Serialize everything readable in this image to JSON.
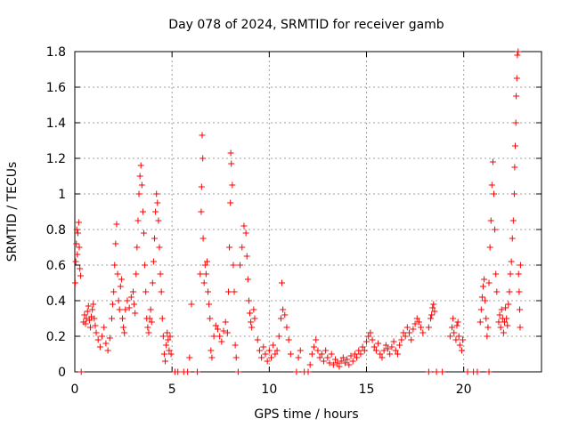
{
  "chart_data": {
    "type": "scatter",
    "title": "Day 078 of 2024, SRMTID for receiver gamb",
    "xlabel": "GPS time / hours",
    "ylabel": "SRMTID / TECUs",
    "xlim": [
      0,
      24
    ],
    "ylim": [
      0,
      1.8
    ],
    "xticks": [
      0,
      5,
      10,
      15,
      20
    ],
    "xtick_labels": [
      "0",
      "5",
      "10",
      "15",
      "20"
    ],
    "yticks": [
      0,
      0.2,
      0.4,
      0.6,
      0.8,
      1,
      1.2,
      1.4,
      1.6,
      1.8
    ],
    "ytick_labels": [
      "0",
      "0.2",
      "0.4",
      "0.6",
      "0.8",
      "1",
      "1.2",
      "1.4",
      "1.6",
      "1.8"
    ],
    "grid": true,
    "marker": "+",
    "color": "#ff0000",
    "series": [
      {
        "name": "SRMTID",
        "points": [
          [
            0.02,
            0.5
          ],
          [
            0.05,
            0.62
          ],
          [
            0.08,
            0.72
          ],
          [
            0.1,
            0.8
          ],
          [
            0.13,
            0.66
          ],
          [
            0.16,
            0.78
          ],
          [
            0.2,
            0.84
          ],
          [
            0.23,
            0.7
          ],
          [
            0.26,
            0.58
          ],
          [
            0.3,
            0.54
          ],
          [
            0.33,
            0.0
          ],
          [
            0.45,
            0.28
          ],
          [
            0.5,
            0.32
          ],
          [
            0.55,
            0.27
          ],
          [
            0.6,
            0.3
          ],
          [
            0.65,
            0.34
          ],
          [
            0.7,
            0.37
          ],
          [
            0.75,
            0.29
          ],
          [
            0.8,
            0.25
          ],
          [
            0.85,
            0.31
          ],
          [
            0.9,
            0.35
          ],
          [
            0.95,
            0.38
          ],
          [
            1.0,
            0.3
          ],
          [
            1.05,
            0.26
          ],
          [
            1.1,
            0.22
          ],
          [
            1.2,
            0.18
          ],
          [
            1.3,
            0.14
          ],
          [
            1.4,
            0.2
          ],
          [
            1.5,
            0.25
          ],
          [
            1.6,
            0.16
          ],
          [
            1.7,
            0.12
          ],
          [
            1.8,
            0.19
          ],
          [
            1.9,
            0.3
          ],
          [
            1.95,
            0.38
          ],
          [
            2.0,
            0.45
          ],
          [
            2.05,
            0.6
          ],
          [
            2.1,
            0.72
          ],
          [
            2.15,
            0.83
          ],
          [
            2.2,
            0.55
          ],
          [
            2.25,
            0.4
          ],
          [
            2.3,
            0.35
          ],
          [
            2.35,
            0.48
          ],
          [
            2.4,
            0.52
          ],
          [
            2.45,
            0.3
          ],
          [
            2.5,
            0.25
          ],
          [
            2.55,
            0.22
          ],
          [
            2.6,
            0.35
          ],
          [
            2.7,
            0.4
          ],
          [
            2.8,
            0.36
          ],
          [
            2.9,
            0.42
          ],
          [
            3.0,
            0.45
          ],
          [
            3.05,
            0.38
          ],
          [
            3.1,
            0.33
          ],
          [
            3.15,
            0.55
          ],
          [
            3.2,
            0.7
          ],
          [
            3.25,
            0.85
          ],
          [
            3.3,
            1.0
          ],
          [
            3.35,
            1.1
          ],
          [
            3.4,
            1.16
          ],
          [
            3.45,
            1.05
          ],
          [
            3.5,
            0.9
          ],
          [
            3.55,
            0.78
          ],
          [
            3.6,
            0.6
          ],
          [
            3.65,
            0.45
          ],
          [
            3.7,
            0.3
          ],
          [
            3.75,
            0.25
          ],
          [
            3.8,
            0.22
          ],
          [
            3.85,
            0.3
          ],
          [
            3.9,
            0.35
          ],
          [
            3.95,
            0.28
          ],
          [
            4.0,
            0.5
          ],
          [
            4.05,
            0.62
          ],
          [
            4.1,
            0.75
          ],
          [
            4.15,
            0.9
          ],
          [
            4.2,
            1.0
          ],
          [
            4.25,
            0.95
          ],
          [
            4.3,
            0.85
          ],
          [
            4.35,
            0.7
          ],
          [
            4.4,
            0.55
          ],
          [
            4.45,
            0.45
          ],
          [
            4.5,
            0.3
          ],
          [
            4.55,
            0.2
          ],
          [
            4.6,
            0.1
          ],
          [
            4.65,
            0.06
          ],
          [
            4.7,
            0.15
          ],
          [
            4.75,
            0.22
          ],
          [
            4.8,
            0.18
          ],
          [
            4.85,
            0.12
          ],
          [
            4.9,
            0.2
          ],
          [
            4.95,
            0.1
          ],
          [
            5.15,
            0.0
          ],
          [
            5.3,
            0.0
          ],
          [
            5.6,
            0.0
          ],
          [
            5.8,
            0.0
          ],
          [
            5.9,
            0.08
          ],
          [
            6.0,
            0.38
          ],
          [
            6.3,
            0.0
          ],
          [
            6.45,
            0.55
          ],
          [
            6.5,
            0.9
          ],
          [
            6.52,
            1.04
          ],
          [
            6.55,
            1.33
          ],
          [
            6.58,
            1.2
          ],
          [
            6.6,
            0.75
          ],
          [
            6.65,
            0.5
          ],
          [
            6.7,
            0.6
          ],
          [
            6.75,
            0.55
          ],
          [
            6.8,
            0.62
          ],
          [
            6.85,
            0.45
          ],
          [
            6.9,
            0.38
          ],
          [
            6.95,
            0.3
          ],
          [
            7.0,
            0.12
          ],
          [
            7.05,
            0.08
          ],
          [
            7.15,
            0.2
          ],
          [
            7.25,
            0.26
          ],
          [
            7.35,
            0.24
          ],
          [
            7.45,
            0.2
          ],
          [
            7.55,
            0.17
          ],
          [
            7.65,
            0.23
          ],
          [
            7.75,
            0.28
          ],
          [
            7.85,
            0.22
          ],
          [
            7.9,
            0.45
          ],
          [
            7.95,
            0.7
          ],
          [
            8.0,
            0.95
          ],
          [
            8.02,
            1.23
          ],
          [
            8.05,
            1.17
          ],
          [
            8.1,
            1.05
          ],
          [
            8.15,
            0.6
          ],
          [
            8.2,
            0.45
          ],
          [
            8.25,
            0.15
          ],
          [
            8.3,
            0.08
          ],
          [
            8.4,
            0.0
          ],
          [
            8.5,
            0.6
          ],
          [
            8.6,
            0.7
          ],
          [
            8.7,
            0.82
          ],
          [
            8.8,
            0.78
          ],
          [
            8.85,
            0.65
          ],
          [
            8.9,
            0.52
          ],
          [
            8.95,
            0.4
          ],
          [
            9.0,
            0.33
          ],
          [
            9.05,
            0.28
          ],
          [
            9.1,
            0.25
          ],
          [
            9.2,
            0.35
          ],
          [
            9.25,
            0.3
          ],
          [
            9.4,
            0.18
          ],
          [
            9.5,
            0.12
          ],
          [
            9.6,
            0.08
          ],
          [
            9.7,
            0.14
          ],
          [
            9.8,
            0.1
          ],
          [
            9.9,
            0.06
          ],
          [
            10.0,
            0.12
          ],
          [
            10.1,
            0.08
          ],
          [
            10.2,
            0.15
          ],
          [
            10.3,
            0.1
          ],
          [
            10.4,
            0.12
          ],
          [
            10.5,
            0.2
          ],
          [
            10.6,
            0.3
          ],
          [
            10.65,
            0.5
          ],
          [
            10.7,
            0.35
          ],
          [
            10.8,
            0.32
          ],
          [
            10.9,
            0.25
          ],
          [
            11.0,
            0.18
          ],
          [
            11.1,
            0.1
          ],
          [
            11.4,
            0.0
          ],
          [
            11.5,
            0.08
          ],
          [
            11.6,
            0.12
          ],
          [
            11.8,
            0.0
          ],
          [
            12.0,
            0.0
          ],
          [
            12.1,
            0.04
          ],
          [
            12.2,
            0.1
          ],
          [
            12.3,
            0.14
          ],
          [
            12.4,
            0.18
          ],
          [
            12.5,
            0.12
          ],
          [
            12.6,
            0.08
          ],
          [
            12.7,
            0.1
          ],
          [
            12.8,
            0.06
          ],
          [
            12.9,
            0.12
          ],
          [
            13.0,
            0.08
          ],
          [
            13.1,
            0.05
          ],
          [
            13.2,
            0.1
          ],
          [
            13.3,
            0.04
          ],
          [
            13.4,
            0.07
          ],
          [
            13.5,
            0.05
          ],
          [
            13.6,
            0.03
          ],
          [
            13.7,
            0.06
          ],
          [
            13.8,
            0.08
          ],
          [
            13.9,
            0.05
          ],
          [
            14.0,
            0.07
          ],
          [
            14.1,
            0.04
          ],
          [
            14.2,
            0.09
          ],
          [
            14.3,
            0.06
          ],
          [
            14.4,
            0.1
          ],
          [
            14.5,
            0.08
          ],
          [
            14.6,
            0.12
          ],
          [
            14.7,
            0.1
          ],
          [
            14.8,
            0.14
          ],
          [
            14.9,
            0.12
          ],
          [
            15.0,
            0.17
          ],
          [
            15.1,
            0.2
          ],
          [
            15.2,
            0.22
          ],
          [
            15.3,
            0.18
          ],
          [
            15.4,
            0.14
          ],
          [
            15.5,
            0.12
          ],
          [
            15.6,
            0.16
          ],
          [
            15.7,
            0.1
          ],
          [
            15.8,
            0.08
          ],
          [
            15.9,
            0.12
          ],
          [
            16.0,
            0.15
          ],
          [
            16.1,
            0.13
          ],
          [
            16.2,
            0.1
          ],
          [
            16.3,
            0.14
          ],
          [
            16.4,
            0.17
          ],
          [
            16.5,
            0.12
          ],
          [
            16.6,
            0.1
          ],
          [
            16.7,
            0.15
          ],
          [
            16.8,
            0.18
          ],
          [
            16.9,
            0.22
          ],
          [
            17.0,
            0.2
          ],
          [
            17.1,
            0.25
          ],
          [
            17.2,
            0.22
          ],
          [
            17.3,
            0.18
          ],
          [
            17.4,
            0.24
          ],
          [
            17.5,
            0.27
          ],
          [
            17.6,
            0.3
          ],
          [
            17.7,
            0.28
          ],
          [
            17.8,
            0.25
          ],
          [
            17.9,
            0.22
          ],
          [
            18.2,
            0.25
          ],
          [
            18.3,
            0.3
          ],
          [
            18.35,
            0.32
          ],
          [
            18.4,
            0.36
          ],
          [
            18.45,
            0.38
          ],
          [
            18.5,
            0.34
          ],
          [
            18.2,
            0.0
          ],
          [
            18.6,
            0.0
          ],
          [
            18.9,
            0.0
          ],
          [
            19.3,
            0.2
          ],
          [
            19.4,
            0.25
          ],
          [
            19.45,
            0.3
          ],
          [
            19.5,
            0.22
          ],
          [
            19.6,
            0.18
          ],
          [
            19.65,
            0.26
          ],
          [
            19.7,
            0.28
          ],
          [
            19.75,
            0.2
          ],
          [
            19.8,
            0.15
          ],
          [
            19.9,
            0.12
          ],
          [
            19.95,
            0.18
          ],
          [
            20.2,
            0.0
          ],
          [
            20.5,
            0.0
          ],
          [
            20.7,
            0.0
          ],
          [
            20.85,
            0.28
          ],
          [
            20.9,
            0.35
          ],
          [
            20.95,
            0.42
          ],
          [
            21.0,
            0.48
          ],
          [
            21.05,
            0.52
          ],
          [
            21.1,
            0.4
          ],
          [
            21.15,
            0.3
          ],
          [
            21.2,
            0.2
          ],
          [
            21.25,
            0.25
          ],
          [
            21.3,
            0.5
          ],
          [
            21.35,
            0.7
          ],
          [
            21.4,
            0.85
          ],
          [
            21.45,
            1.05
          ],
          [
            21.5,
            1.18
          ],
          [
            21.55,
            1.0
          ],
          [
            21.6,
            0.8
          ],
          [
            21.65,
            0.55
          ],
          [
            21.7,
            0.45
          ],
          [
            21.3,
            0.0
          ],
          [
            21.8,
            0.28
          ],
          [
            21.85,
            0.32
          ],
          [
            21.9,
            0.25
          ],
          [
            21.95,
            0.35
          ],
          [
            22.0,
            0.3
          ],
          [
            22.05,
            0.22
          ],
          [
            22.1,
            0.28
          ],
          [
            22.15,
            0.36
          ],
          [
            22.2,
            0.3
          ],
          [
            22.25,
            0.26
          ],
          [
            22.3,
            0.38
          ],
          [
            22.35,
            0.45
          ],
          [
            22.4,
            0.55
          ],
          [
            22.45,
            0.62
          ],
          [
            22.5,
            0.75
          ],
          [
            22.55,
            0.85
          ],
          [
            22.6,
            1.0
          ],
          [
            22.62,
            1.15
          ],
          [
            22.65,
            1.27
          ],
          [
            22.68,
            1.4
          ],
          [
            22.7,
            1.55
          ],
          [
            22.73,
            1.65
          ],
          [
            22.76,
            1.78
          ],
          [
            22.8,
            1.8
          ],
          [
            22.82,
            0.55
          ],
          [
            22.85,
            0.45
          ],
          [
            22.88,
            0.35
          ],
          [
            22.9,
            0.25
          ],
          [
            22.92,
            0.6
          ]
        ]
      }
    ]
  }
}
